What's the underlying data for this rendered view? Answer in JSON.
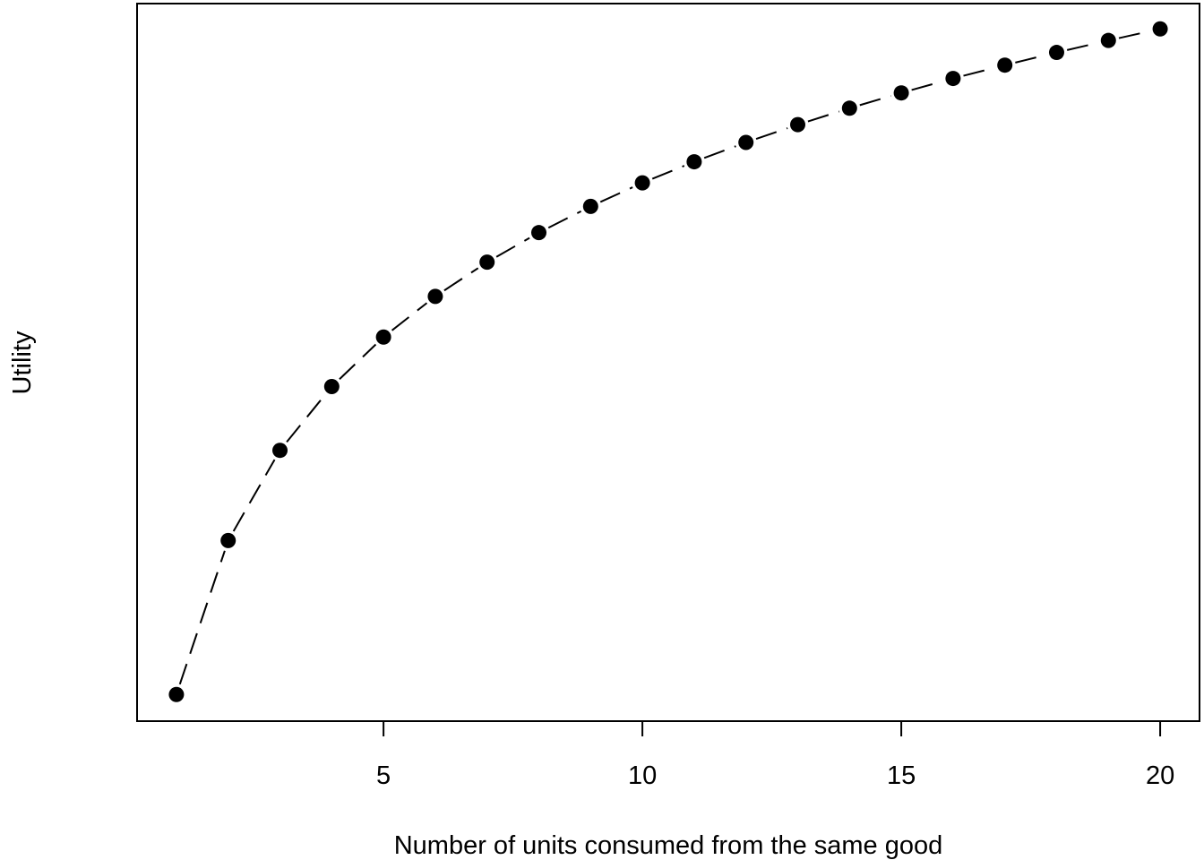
{
  "chart_data": {
    "type": "line",
    "title": "",
    "xlabel": "Number of units consumed from the same good",
    "ylabel": "Utility",
    "x": [
      1,
      2,
      3,
      4,
      5,
      6,
      7,
      8,
      9,
      10,
      11,
      12,
      13,
      14,
      15,
      16,
      17,
      18,
      19,
      20
    ],
    "series": [
      {
        "values": [
          0,
          0.693,
          1.099,
          1.386,
          1.609,
          1.792,
          1.946,
          2.079,
          2.197,
          2.303,
          2.398,
          2.485,
          2.565,
          2.639,
          2.708,
          2.773,
          2.833,
          2.89,
          2.944,
          2.996
        ],
        "line_style": "dashed",
        "marker": "filled-circle",
        "color": "#000000"
      }
    ],
    "xticks": [
      5,
      10,
      15,
      20
    ],
    "xlim": [
      0.24,
      20.76
    ],
    "ylim": [
      -0.12,
      3.11
    ],
    "y_ticks_shown": false,
    "grid": false,
    "legend": "none"
  }
}
